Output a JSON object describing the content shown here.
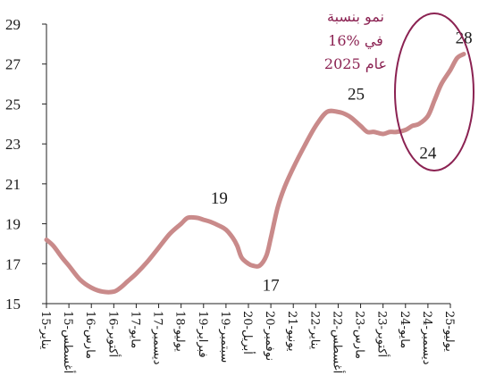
{
  "chart_data": {
    "type": "line",
    "title": "",
    "xlabel": "",
    "ylabel": "",
    "ylim": [
      15,
      29
    ],
    "y_ticks": [
      "29",
      "27",
      "25",
      "23",
      "21",
      "19",
      "17",
      "15"
    ],
    "x_tick_labels": [
      "يناير-15",
      "أغسطس-15",
      "مارس-16",
      "أكتوبر-16",
      "مايو-17",
      "ديسمبر-17",
      "يوليو-18",
      "فبراير-19",
      "سبتمبر-19",
      "أبريل-20",
      "نوفمبر-20",
      "يونيو-21",
      "يناير-22",
      "أغسطس-22",
      "مارس-23",
      "أكتوبر-23",
      "مايو-24",
      "ديسمبر-24",
      "يوليو-25"
    ],
    "grid": false,
    "legend": "none",
    "line_color": "#c98a8a",
    "series": [
      {
        "x": [
          0,
          0.3,
          0.7,
          1,
          1.5,
          2,
          2.5,
          3,
          3.3,
          3.6,
          4,
          4.5,
          5,
          5.5,
          6,
          6.3,
          6.7,
          7,
          7.3,
          7.7,
          8,
          8.3,
          8.5,
          8.7,
          9,
          9.2,
          9.5,
          9.8,
          10,
          10.3,
          10.6,
          11,
          11.5,
          12,
          12.5,
          13,
          13.3,
          13.6,
          14,
          14.3,
          14.6,
          15,
          15.3,
          15.6,
          16,
          16.3,
          16.6,
          17,
          17.3,
          17.6,
          18,
          18.3,
          18.6
        ],
        "y": [
          18.2,
          17.9,
          17.3,
          16.9,
          16.2,
          15.8,
          15.6,
          15.6,
          15.8,
          16.1,
          16.5,
          17.1,
          17.8,
          18.5,
          19.0,
          19.3,
          19.3,
          19.2,
          19.1,
          18.9,
          18.7,
          18.3,
          17.9,
          17.3,
          17.0,
          16.9,
          16.9,
          17.4,
          18.3,
          19.8,
          20.8,
          21.8,
          22.9,
          23.9,
          24.6,
          24.6,
          24.5,
          24.3,
          23.9,
          23.6,
          23.6,
          23.5,
          23.6,
          23.6,
          23.7,
          23.9,
          24.0,
          24.4,
          25.2,
          26.0,
          26.7,
          27.3,
          27.5
        ]
      }
    ],
    "annotations": [
      {
        "text": "19",
        "x": 7.7,
        "y": 19.3
      },
      {
        "text": "17",
        "x": 10.0,
        "y": 16.9
      },
      {
        "text": "25",
        "x": 13.8,
        "y": 24.6
      },
      {
        "text": "24",
        "x": 17.0,
        "y": 23.6
      },
      {
        "text": "28",
        "x": 18.6,
        "y": 27.5
      }
    ],
    "callout": {
      "lines": [
        "نمو بنسبة",
        "16% في",
        "عام 2025"
      ],
      "color": "#8b2252"
    }
  }
}
